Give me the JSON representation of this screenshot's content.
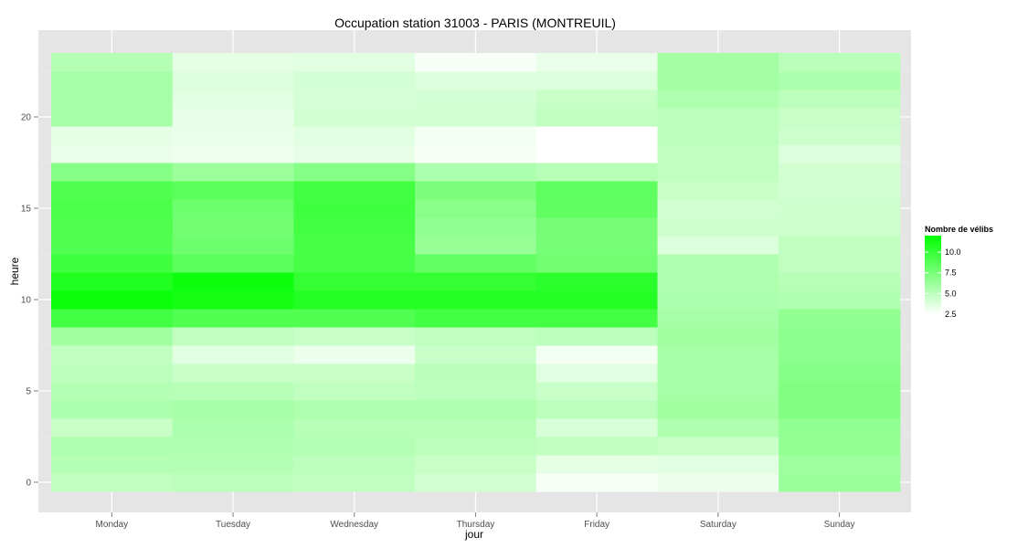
{
  "chart_data": {
    "type": "heatmap",
    "title": "Occupation station 31003 - PARIS (MONTREUIL)",
    "xlabel": "jour",
    "ylabel": "heure",
    "x_categories": [
      "Monday",
      "Tuesday",
      "Wednesday",
      "Thursday",
      "Friday",
      "Saturday",
      "Sunday"
    ],
    "y_hours": [
      0,
      1,
      2,
      3,
      4,
      5,
      6,
      7,
      8,
      9,
      10,
      11,
      12,
      13,
      14,
      15,
      16,
      17,
      18,
      19,
      20,
      21,
      22,
      23
    ],
    "y_ticks": [
      0,
      5,
      10,
      15,
      20
    ],
    "y_range": [
      -0.5,
      23.5
    ],
    "values": [
      [
        4.8,
        5.0,
        4.8,
        4.2,
        2.8,
        3.2,
        6.3
      ],
      [
        5.3,
        5.3,
        5.0,
        4.6,
        3.5,
        3.6,
        6.1
      ],
      [
        5.5,
        5.4,
        5.3,
        5.0,
        4.8,
        4.6,
        6.5
      ],
      [
        4.6,
        5.6,
        5.2,
        5.2,
        3.9,
        5.5,
        6.6
      ],
      [
        5.6,
        5.8,
        5.5,
        5.5,
        5.0,
        6.0,
        7.2
      ],
      [
        5.3,
        5.2,
        4.8,
        5.0,
        4.5,
        5.8,
        7.2
      ],
      [
        5.0,
        4.5,
        4.6,
        5.1,
        3.6,
        5.8,
        7.0
      ],
      [
        4.8,
        3.6,
        3.2,
        4.5,
        3.0,
        5.8,
        6.8
      ],
      [
        6.0,
        4.8,
        4.6,
        4.8,
        5.0,
        6.0,
        6.8
      ],
      [
        9.5,
        9.0,
        9.0,
        9.5,
        9.5,
        5.8,
        6.6
      ],
      [
        11.6,
        11.2,
        10.7,
        10.7,
        10.7,
        5.6,
        5.4
      ],
      [
        10.8,
        11.5,
        10.1,
        10.1,
        10.4,
        5.5,
        5.2
      ],
      [
        9.6,
        8.6,
        9.3,
        8.3,
        7.8,
        5.5,
        4.9
      ],
      [
        9.0,
        7.9,
        9.3,
        6.4,
        7.6,
        3.8,
        4.8
      ],
      [
        9.1,
        7.7,
        9.5,
        6.6,
        7.6,
        4.4,
        4.4
      ],
      [
        9.2,
        7.9,
        9.6,
        6.9,
        8.4,
        4.2,
        4.3
      ],
      [
        9.0,
        8.6,
        9.5,
        7.4,
        8.5,
        4.6,
        4.2
      ],
      [
        7.0,
        6.2,
        7.0,
        5.6,
        5.2,
        4.8,
        4.2
      ],
      [
        3.3,
        3.1,
        3.4,
        2.8,
        2.5,
        4.8,
        3.8
      ],
      [
        3.5,
        3.3,
        3.6,
        3.0,
        2.5,
        5.0,
        4.4
      ],
      [
        5.8,
        3.4,
        4.2,
        4.2,
        4.8,
        5.0,
        4.6
      ],
      [
        5.8,
        3.6,
        4.0,
        4.1,
        4.6,
        5.5,
        5.0
      ],
      [
        5.8,
        3.8,
        4.1,
        3.8,
        3.8,
        5.9,
        5.6
      ],
      [
        5.3,
        3.5,
        3.6,
        2.8,
        3.3,
        5.9,
        5.1
      ]
    ],
    "color_scale": {
      "low": "#ffffff",
      "high": "#00ff00",
      "range": [
        2.5,
        12.0
      ]
    },
    "legend": {
      "title": "Nombre de vélibs",
      "ticks": [
        2.5,
        5.0,
        7.5,
        10.0
      ],
      "tick_labels": [
        "2.5",
        "5.0",
        "7.5",
        "10.0"
      ],
      "placement": "right"
    },
    "grid": true,
    "panel_color": "#e5e5e5"
  }
}
